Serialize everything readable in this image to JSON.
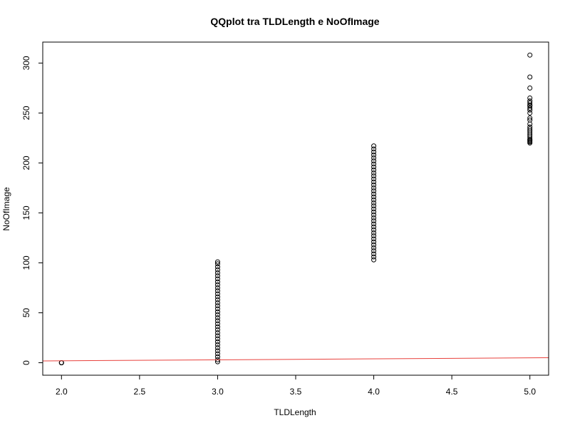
{
  "chart_data": {
    "type": "scatter",
    "title": "QQplot tra TLDLength e NoOfImage",
    "xlabel": "TLDLength",
    "ylabel": "NoOfImage",
    "xlim": [
      1.88,
      5.12
    ],
    "ylim": [
      -12.5,
      321
    ],
    "xticks": [
      "2.0",
      "2.5",
      "3.0",
      "3.5",
      "4.0",
      "4.5",
      "5.0"
    ],
    "yticks": [
      "0",
      "50",
      "100",
      "150",
      "200",
      "250",
      "300"
    ],
    "grid": false,
    "colors": {
      "points": "#000000",
      "reference_line": "#e8413c"
    },
    "series": [
      {
        "x": 2,
        "y": [
          0,
          0,
          0,
          0
        ]
      },
      {
        "x": 3,
        "y": [
          1,
          3,
          6,
          9,
          12,
          15,
          18,
          21,
          24,
          27,
          30,
          33,
          36,
          39,
          42,
          45,
          48,
          51,
          54,
          57,
          60,
          63,
          66,
          69,
          72,
          75,
          78,
          81,
          84,
          87,
          90,
          93,
          96,
          99,
          101
        ]
      },
      {
        "x": 4,
        "y": [
          103,
          106,
          109,
          112,
          115,
          118,
          121,
          124,
          127,
          130,
          133,
          136,
          139,
          142,
          145,
          148,
          151,
          154,
          157,
          160,
          163,
          166,
          169,
          172,
          175,
          178,
          181,
          184,
          187,
          190,
          193,
          196,
          199,
          202,
          205,
          208,
          211,
          214,
          217
        ]
      },
      {
        "x": 5,
        "y": [
          220,
          221,
          222,
          223,
          224,
          226,
          228,
          230,
          232,
          234,
          236,
          239,
          243,
          245,
          250,
          253,
          255,
          257,
          258,
          260,
          262,
          265,
          275,
          286,
          308
        ]
      }
    ],
    "reference_line": {
      "x": [
        1.88,
        5.12
      ],
      "y": [
        1.8,
        5.0
      ]
    }
  }
}
